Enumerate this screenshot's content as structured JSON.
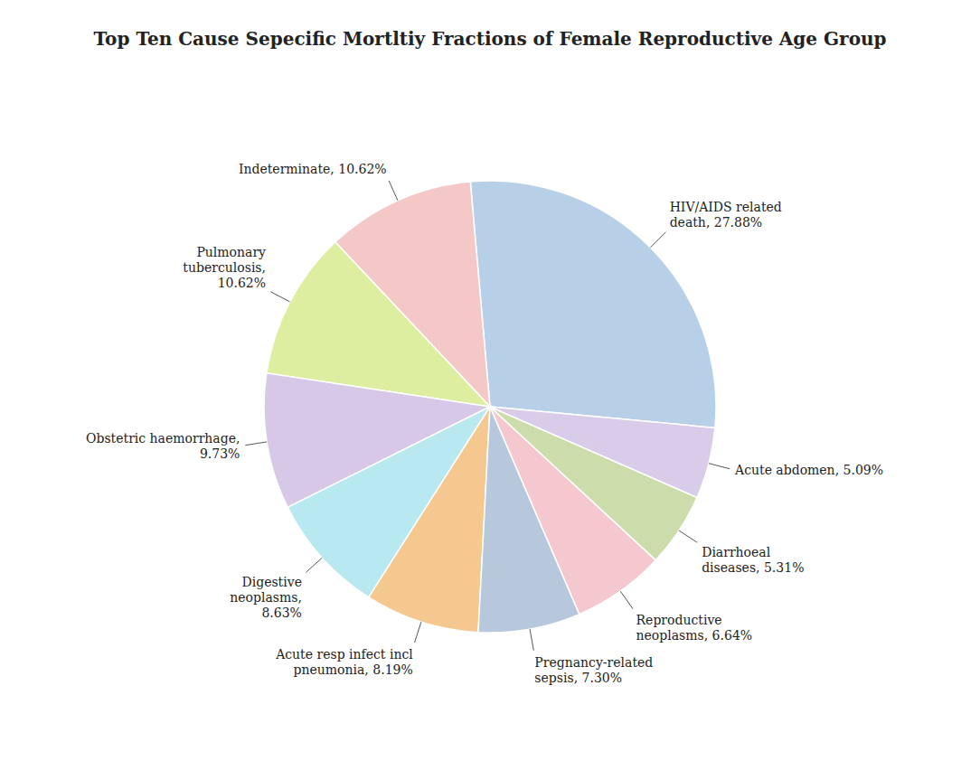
{
  "chart_data": {
    "type": "pie",
    "title": "Top Ten Cause Sepecific Mortltiy Fractions of Female Reproductive Age Group",
    "labels": [
      "HIV/AIDS related\ndeath, 27.88%",
      "Indeterminate,  10.62%",
      "Pulmonary\ntuberculosis,\n10.62%",
      "Obstetric haemorrhage,\n9.73%",
      "Digestive\nneoplasms,\n8.63%",
      "Acute resp infect incl\npneumonia,  8.19%",
      "Pregnancy-related\nsepsis, 7.30%",
      "Reproductive\nneoplasms,  6.64%",
      "Diarrhoeal\ndiseases, 5.31%",
      "Acute abdomen, 5.09%"
    ],
    "values": [
      27.88,
      10.62,
      10.62,
      9.73,
      8.63,
      8.19,
      7.3,
      6.64,
      5.31,
      5.09
    ],
    "colors": [
      "#b8cfe8",
      "#f5c8c8",
      "#ddeea0",
      "#d8c8e8",
      "#b8e8f0",
      "#f5c890",
      "#b8c8dc",
      "#f5c8d0",
      "#ccdcaa",
      "#d8cce8"
    ]
  }
}
